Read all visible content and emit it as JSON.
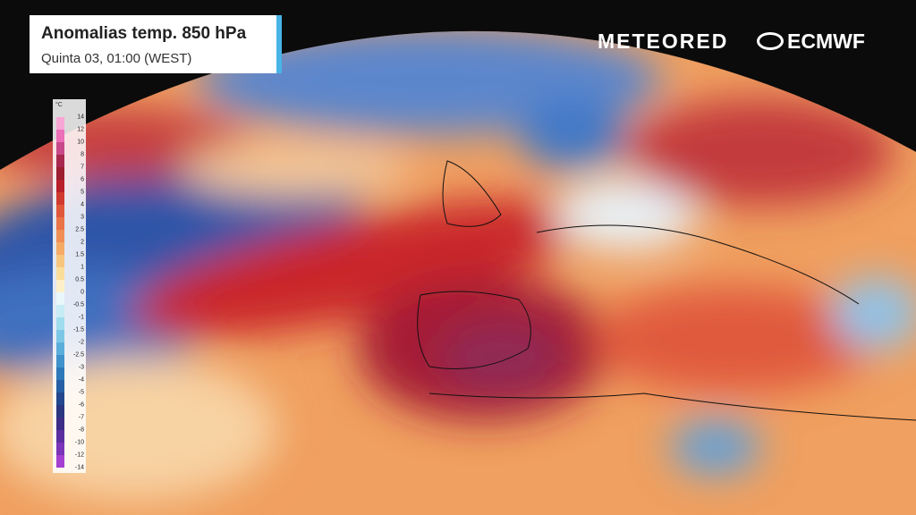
{
  "header": {
    "title": "Anomalias temp. 850 hPa",
    "subtitle": "Quinta 03, 01:00 (WEST)"
  },
  "logos": {
    "meteored": "METEORED",
    "ecmwf": "ECMWF"
  },
  "legend": {
    "unit": "°C",
    "ticks": [
      14,
      12,
      10,
      8,
      7,
      6,
      5,
      4,
      3,
      2.5,
      2,
      1.5,
      1,
      0.5,
      0,
      -0.5,
      -1,
      -1.5,
      -2,
      -2.5,
      -3,
      -4,
      -5,
      -6,
      -7,
      -8,
      -10,
      -12,
      -14
    ],
    "colors": [
      "#f7a6d6",
      "#ec6fb8",
      "#c94a8a",
      "#a8284f",
      "#9c1e2f",
      "#b8202a",
      "#d03a2e",
      "#e0583a",
      "#ea7447",
      "#f08f55",
      "#f5aa66",
      "#f8c57e",
      "#fbdd9a",
      "#fdf0c8",
      "#e9f6fb",
      "#c7ecf5",
      "#9fdcee",
      "#7cc7e6",
      "#5aaedb",
      "#3f92cc",
      "#2c78bb",
      "#2560a6",
      "#24488f",
      "#2a3680",
      "#3d2d86",
      "#5a2ea0",
      "#7a34b8",
      "#a43fd2"
    ]
  }
}
